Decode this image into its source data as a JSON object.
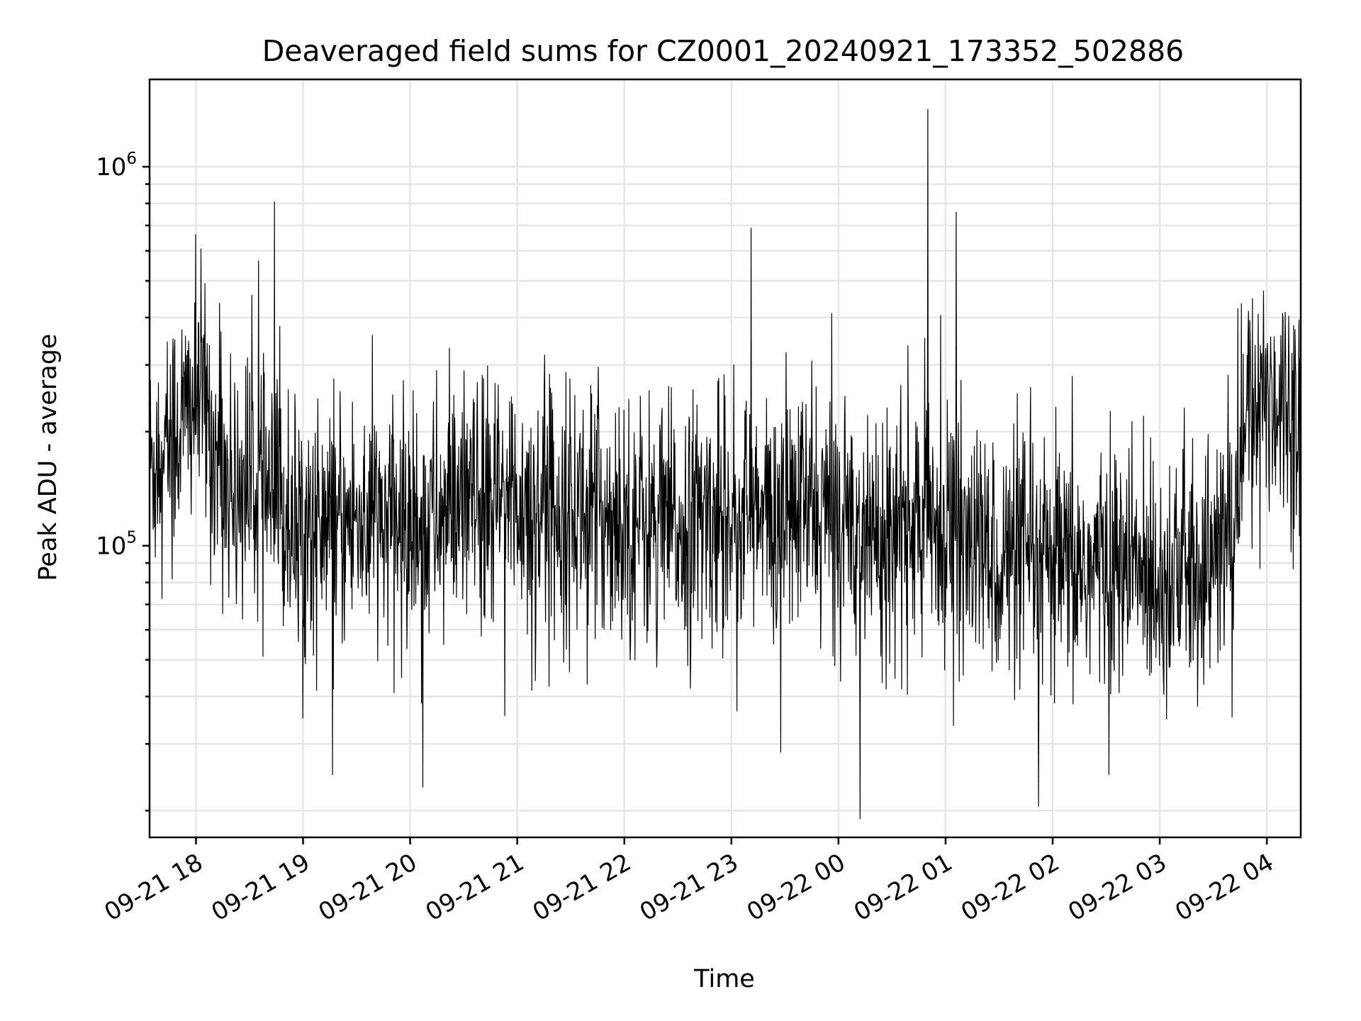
{
  "chart_data": {
    "type": "line",
    "title": "Deaveraged field sums for CZ0001_20240921_173352_502886",
    "xlabel": "Time",
    "ylabel": "Peak ADU - average",
    "yscale": "log",
    "ylim": [
      17000,
      1700000
    ],
    "xlim": [
      "2024-09-21 17:34",
      "2024-09-22 04:19"
    ],
    "grid": true,
    "line_color": "#000000",
    "x_ticks": [
      {
        "t": "2024-09-21 18:00",
        "label": "09-21 18"
      },
      {
        "t": "2024-09-21 19:00",
        "label": "09-21 19"
      },
      {
        "t": "2024-09-21 20:00",
        "label": "09-21 20"
      },
      {
        "t": "2024-09-21 21:00",
        "label": "09-21 21"
      },
      {
        "t": "2024-09-21 22:00",
        "label": "09-21 22"
      },
      {
        "t": "2024-09-21 23:00",
        "label": "09-21 23"
      },
      {
        "t": "2024-09-22 00:00",
        "label": "09-22 00"
      },
      {
        "t": "2024-09-22 01:00",
        "label": "09-22 01"
      },
      {
        "t": "2024-09-22 02:00",
        "label": "09-22 02"
      },
      {
        "t": "2024-09-22 03:00",
        "label": "09-22 03"
      },
      {
        "t": "2024-09-22 04:00",
        "label": "09-22 04"
      }
    ],
    "y_ticks": [
      {
        "value": 100000,
        "base": "10",
        "exp": "5"
      },
      {
        "value": 1000000,
        "base": "10",
        "exp": "6"
      }
    ],
    "series": [
      {
        "color": "#000000",
        "x": [
          "2024-09-21 17:34",
          "2024-09-21 17:40",
          "2024-09-21 17:46",
          "2024-09-21 17:52",
          "2024-09-21 17:58",
          "2024-09-21 18:04",
          "2024-09-21 18:10",
          "2024-09-21 18:20",
          "2024-09-21 18:30",
          "2024-09-21 18:40",
          "2024-09-21 18:50",
          "2024-09-21 19:00",
          "2024-09-21 19:10",
          "2024-09-21 19:20",
          "2024-09-21 19:30",
          "2024-09-21 19:40",
          "2024-09-21 19:50",
          "2024-09-21 20:00",
          "2024-09-21 20:10",
          "2024-09-21 20:20",
          "2024-09-21 20:30",
          "2024-09-21 20:40",
          "2024-09-21 20:50",
          "2024-09-21 21:00",
          "2024-09-21 21:10",
          "2024-09-21 21:20",
          "2024-09-21 21:30",
          "2024-09-21 21:40",
          "2024-09-21 21:50",
          "2024-09-21 22:00",
          "2024-09-21 22:10",
          "2024-09-21 22:20",
          "2024-09-21 22:30",
          "2024-09-21 22:40",
          "2024-09-21 22:50",
          "2024-09-21 23:00",
          "2024-09-21 23:10",
          "2024-09-21 23:20",
          "2024-09-21 23:30",
          "2024-09-21 23:40",
          "2024-09-21 23:50",
          "2024-09-22 00:00",
          "2024-09-22 00:10",
          "2024-09-22 00:20",
          "2024-09-22 00:30",
          "2024-09-22 00:40",
          "2024-09-22 00:50",
          "2024-09-22 01:00",
          "2024-09-22 01:10",
          "2024-09-22 01:20",
          "2024-09-22 01:30",
          "2024-09-22 01:40",
          "2024-09-22 01:50",
          "2024-09-22 02:00",
          "2024-09-22 02:10",
          "2024-09-22 02:20",
          "2024-09-22 02:30",
          "2024-09-22 02:40",
          "2024-09-22 02:50",
          "2024-09-22 03:00",
          "2024-09-22 03:10",
          "2024-09-22 03:20",
          "2024-09-22 03:30",
          "2024-09-22 03:40",
          "2024-09-22 03:46",
          "2024-09-22 03:52",
          "2024-09-22 03:58",
          "2024-09-22 04:04",
          "2024-09-22 04:10",
          "2024-09-22 04:19"
        ],
        "y": [
          160000,
          180000,
          200000,
          210000,
          240000,
          250000,
          180000,
          140000,
          150000,
          130000,
          120000,
          115000,
          112000,
          110000,
          118000,
          115000,
          112000,
          110000,
          115000,
          120000,
          125000,
          128000,
          130000,
          132000,
          130000,
          128000,
          125000,
          122000,
          120000,
          118000,
          115000,
          112000,
          110000,
          115000,
          120000,
          122000,
          118000,
          115000,
          120000,
          125000,
          122000,
          118000,
          115000,
          112000,
          110000,
          112000,
          115000,
          110000,
          100000,
          95000,
          92000,
          90000,
          88000,
          86000,
          85000,
          87000,
          88000,
          86000,
          85000,
          84000,
          86000,
          85000,
          90000,
          110000,
          180000,
          240000,
          260000,
          250000,
          240000,
          235000
        ]
      }
    ],
    "annotations_spikes": [
      {
        "t": "2024-09-21 18:44",
        "y": 810000
      },
      {
        "t": "2024-09-21 23:11",
        "y": 690000
      },
      {
        "t": "2024-09-22 00:50",
        "y": 1420000
      },
      {
        "t": "2024-09-22 01:06",
        "y": 760000
      },
      {
        "t": "2024-09-21 20:07",
        "y": 23000
      },
      {
        "t": "2024-09-22 00:12",
        "y": 19000
      },
      {
        "t": "2024-09-22 01:52",
        "y": 20500
      }
    ]
  }
}
